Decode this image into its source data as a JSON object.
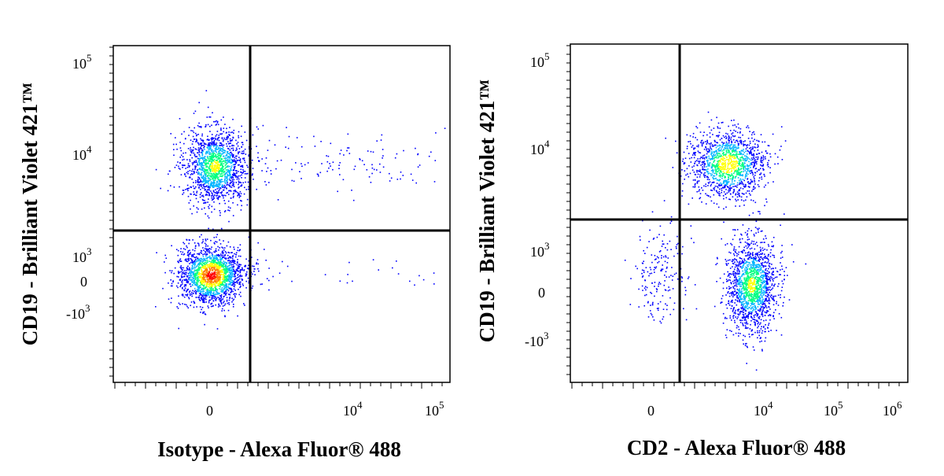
{
  "chart_data": [
    {
      "type": "scatter",
      "subtype": "flow-cytometry-density-dot-plot",
      "xlabel": "Isotype - Alexa Fluor® 488",
      "ylabel": "CD19 - Brilliant Violet 421™",
      "x_scale": "biexponential",
      "y_scale": "biexponential",
      "x_ticks": [
        {
          "base": "0",
          "exp": ""
        },
        {
          "base": "10",
          "exp": "4"
        },
        {
          "base": "10",
          "exp": "5"
        }
      ],
      "y_ticks": [
        {
          "base": "10",
          "exp": "5"
        },
        {
          "base": "10",
          "exp": "4"
        },
        {
          "base": "10",
          "exp": "3"
        },
        {
          "base": "0",
          "exp": ""
        },
        {
          "base": "-10",
          "exp": "3"
        }
      ],
      "quadrant_gate": {
        "x": 1000,
        "y": 1500
      },
      "populations": [
        {
          "description": "CD19+ Isotype-",
          "x_center": 0,
          "y_center": 6000,
          "relative_density": "high"
        },
        {
          "description": "CD19- Isotype-",
          "x_center": 0,
          "y_center": 0,
          "relative_density": "highest"
        },
        {
          "description": "CD19+ Isotype+ (sparse)",
          "x_range": [
            1500,
            120000
          ],
          "y_center": 7000,
          "relative_density": "sparse"
        },
        {
          "description": "CD19- Isotype+ (sparse)",
          "x_range": [
            1500,
            100000
          ],
          "y_center": 0,
          "relative_density": "sparse"
        }
      ],
      "color_scale": [
        "#0000ff",
        "#00b4ff",
        "#00ff80",
        "#ffff00",
        "#ff8000",
        "#ff0000"
      ]
    },
    {
      "type": "scatter",
      "subtype": "flow-cytometry-density-dot-plot",
      "xlabel": "CD2 - Alexa Fluor® 488",
      "ylabel": "CD19 - Brilliant Violet 421™",
      "x_scale": "biexponential",
      "y_scale": "biexponential",
      "x_ticks": [
        {
          "base": "0",
          "exp": ""
        },
        {
          "base": "10",
          "exp": "4"
        },
        {
          "base": "10",
          "exp": "5"
        },
        {
          "base": "10",
          "exp": "6"
        }
      ],
      "y_ticks": [
        {
          "base": "10",
          "exp": "5"
        },
        {
          "base": "10",
          "exp": "4"
        },
        {
          "base": "10",
          "exp": "3"
        },
        {
          "base": "0",
          "exp": ""
        },
        {
          "base": "-10",
          "exp": "3"
        }
      ],
      "quadrant_gate": {
        "x": 1000,
        "y": 2000
      },
      "populations": [
        {
          "description": "CD19+ CD2+",
          "x_center": 4500,
          "y_center": 6000,
          "relative_density": "high"
        },
        {
          "description": "CD19- CD2+",
          "x_center": 7000,
          "y_center": 0,
          "relative_density": "high"
        },
        {
          "description": "CD19- CD2- (sparse)",
          "x_center": 0,
          "y_center": 0,
          "relative_density": "sparse"
        }
      ],
      "color_scale": [
        "#0000ff",
        "#00b4ff",
        "#00ff80",
        "#ffff00",
        "#ff8000",
        "#ff0000"
      ]
    }
  ]
}
